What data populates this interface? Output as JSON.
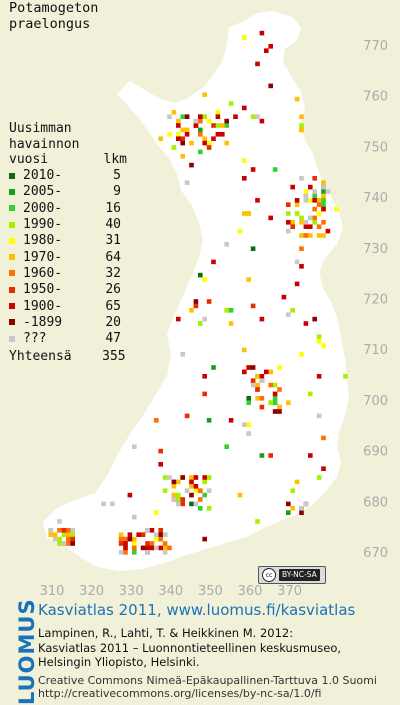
{
  "map": {
    "species_line1": "Potamogeton",
    "species_line2": "praelongus",
    "x_axis": {
      "labels": [
        "310",
        "320",
        "330",
        "340",
        "350",
        "360",
        "370"
      ]
    },
    "y_axis": {
      "labels": [
        "770",
        "760",
        "750",
        "740",
        "730",
        "720",
        "710",
        "700",
        "690",
        "680",
        "670"
      ]
    },
    "colors": {
      "background": "#f1f1d9",
      "land": "#ffffff",
      "grid_label": "#ababab"
    }
  },
  "legend": {
    "heading_line1": "Uusimman",
    "heading_line2": "havainnon",
    "col_year": "vuosi",
    "col_count": "lkm",
    "rows": [
      {
        "label": "2010-",
        "count": "5",
        "color": "#0b6d0b"
      },
      {
        "label": "2005-",
        "count": "9",
        "color": "#18a018"
      },
      {
        "label": "2000-",
        "count": "16",
        "color": "#33d233"
      },
      {
        "label": "1990-",
        "count": "40",
        "color": "#a6f000"
      },
      {
        "label": "1980-",
        "count": "31",
        "color": "#ffff00"
      },
      {
        "label": "1970-",
        "count": "64",
        "color": "#ffc000"
      },
      {
        "label": "1960-",
        "count": "32",
        "color": "#ff7000"
      },
      {
        "label": "1950-",
        "count": "26",
        "color": "#e62d00"
      },
      {
        "label": "1900-",
        "count": "65",
        "color": "#c80000"
      },
      {
        "label": "-1899",
        "count": "20",
        "color": "#8b0000"
      },
      {
        "label": "???",
        "count": "47",
        "color": "#c8c8c8"
      }
    ],
    "total_label": "Yhteensä",
    "total_count": "355"
  },
  "badge": {
    "text": "BY-NC-SA",
    "symbol": "cc"
  },
  "footer": {
    "logo": "LUOMUS",
    "title": "Kasviatlas 2011, www.luomus.fi/kasviatlas",
    "citation1": "Lampinen, R., Lahti, T. & Heikkinen M. 2012:",
    "citation2": "Kasviatlas 2011 – Luonnontieteellinen keskusmuseo,",
    "citation3": "Helsingin Yliopisto, Helsinki.",
    "license1": "Creative Commons Nimeä-Epäkaupallinen-Tarttuva 1.0 Suomi",
    "license2": "http://creativecommons.org/licenses/by-nc-sa/1.0/fi"
  }
}
